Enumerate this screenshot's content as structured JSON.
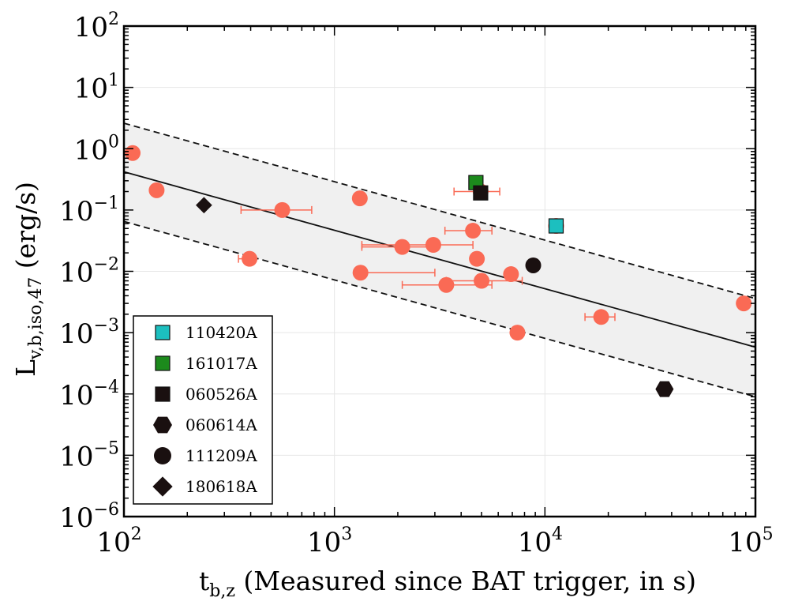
{
  "chart_data": {
    "type": "scatter",
    "xscale": "log",
    "yscale": "log",
    "xlim": [
      100,
      100000
    ],
    "ylim": [
      1e-06,
      100
    ],
    "x_ticks": [
      {
        "base": "10",
        "exp": "2"
      },
      {
        "base": "10",
        "exp": "3"
      },
      {
        "base": "10",
        "exp": "4"
      },
      {
        "base": "10",
        "exp": "5"
      }
    ],
    "y_ticks": [
      {
        "base": "10",
        "exp": "−6"
      },
      {
        "base": "10",
        "exp": "−5"
      },
      {
        "base": "10",
        "exp": "−4"
      },
      {
        "base": "10",
        "exp": "−3"
      },
      {
        "base": "10",
        "exp": "−2"
      },
      {
        "base": "10",
        "exp": "−1"
      },
      {
        "base": "10",
        "exp": "0"
      },
      {
        "base": "10",
        "exp": "1"
      },
      {
        "base": "10",
        "exp": "2"
      }
    ],
    "xlabel": {
      "main": "t",
      "sub": "b,z",
      "rest": " (Measured since BAT trigger,  in s)"
    },
    "ylabel": {
      "main": "L",
      "sub": "v,b,iso,47",
      "rest": " (erg/s)"
    },
    "fit_line": {
      "x": [
        100,
        100000
      ],
      "y": [
        0.42,
        0.00058
      ],
      "style": "solid"
    },
    "band_upper": {
      "x": [
        100,
        100000
      ],
      "y": [
        2.6,
        0.0036
      ],
      "style": "dashed"
    },
    "band_lower": {
      "x": [
        100,
        100000
      ],
      "y": [
        0.065,
        9e-05
      ],
      "style": "dashed"
    },
    "colors": {
      "sample": "#fa6a55",
      "errorbar": "#fa6a55",
      "band": "#f0f0f0",
      "cyan": "#1cbfbf",
      "green": "#1c8a1c",
      "dark": "#1a1010"
    },
    "series": [
      {
        "name": "sample",
        "marker": "circle",
        "color": "#fa6a55",
        "points": [
          {
            "x": 110,
            "y": 0.85
          },
          {
            "x": 143,
            "y": 0.21
          },
          {
            "x": 565,
            "y": 0.1,
            "xerr": [
              360,
              780
            ]
          },
          {
            "x": 395,
            "y": 0.016,
            "xerr": [
              350,
              420
            ]
          },
          {
            "x": 1320,
            "y": 0.155
          },
          {
            "x": 1330,
            "y": 0.0095,
            "xerr": [
              1300,
              3000
            ]
          },
          {
            "x": 2100,
            "y": 0.025,
            "xerr": [
              1350,
              3100
            ]
          },
          {
            "x": 2950,
            "y": 0.027,
            "xerr": [
              1350,
              4550
            ]
          },
          {
            "x": 3400,
            "y": 0.006,
            "xerr": [
              2100,
              5600
            ]
          },
          {
            "x": 4550,
            "y": 0.046,
            "xerr": [
              3350,
              5600
            ]
          },
          {
            "x": 4750,
            "y": 0.016
          },
          {
            "x": 5000,
            "y": 0.007,
            "xerr": [
              3400,
              7800
            ]
          },
          {
            "x": 4950,
            "y": 0.2,
            "xerr": [
              3700,
              6100
            ]
          },
          {
            "x": 6900,
            "y": 0.009
          },
          {
            "x": 7400,
            "y": 0.001
          },
          {
            "x": 11300,
            "y": 0.055
          },
          {
            "x": 18500,
            "y": 0.0018,
            "xerr": [
              15500,
              21500
            ]
          },
          {
            "x": 88000,
            "y": 0.003
          }
        ]
      },
      {
        "name": "110420A",
        "marker": "square",
        "color": "#1cbfbf",
        "points": [
          {
            "x": 11300,
            "y": 0.055
          }
        ]
      },
      {
        "name": "161017A",
        "marker": "square",
        "color": "#1c8a1c",
        "points": [
          {
            "x": 4700,
            "y": 0.28
          }
        ]
      },
      {
        "name": "060526A",
        "marker": "square",
        "color": "#1a1010",
        "points": [
          {
            "x": 4950,
            "y": 0.19
          }
        ]
      },
      {
        "name": "060614A",
        "marker": "hexagon",
        "color": "#1a1010",
        "points": [
          {
            "x": 37000,
            "y": 0.00012
          }
        ]
      },
      {
        "name": "111209A",
        "marker": "circle",
        "color": "#1a1010",
        "points": [
          {
            "x": 8800,
            "y": 0.0125
          }
        ]
      },
      {
        "name": "180618A",
        "marker": "diamond",
        "color": "#1a1010",
        "points": [
          {
            "x": 240,
            "y": 0.12
          }
        ]
      }
    ],
    "legend": {
      "position": "bottom-left",
      "entries": [
        {
          "label": "110420A",
          "marker": "square",
          "color": "#1cbfbf"
        },
        {
          "label": "161017A",
          "marker": "square",
          "color": "#1c8a1c"
        },
        {
          "label": "060526A",
          "marker": "square",
          "color": "#1a1010"
        },
        {
          "label": "060614A",
          "marker": "hexagon",
          "color": "#1a1010"
        },
        {
          "label": "111209A",
          "marker": "circle",
          "color": "#1a1010"
        },
        {
          "label": "180618A",
          "marker": "diamond",
          "color": "#1a1010"
        }
      ]
    }
  }
}
